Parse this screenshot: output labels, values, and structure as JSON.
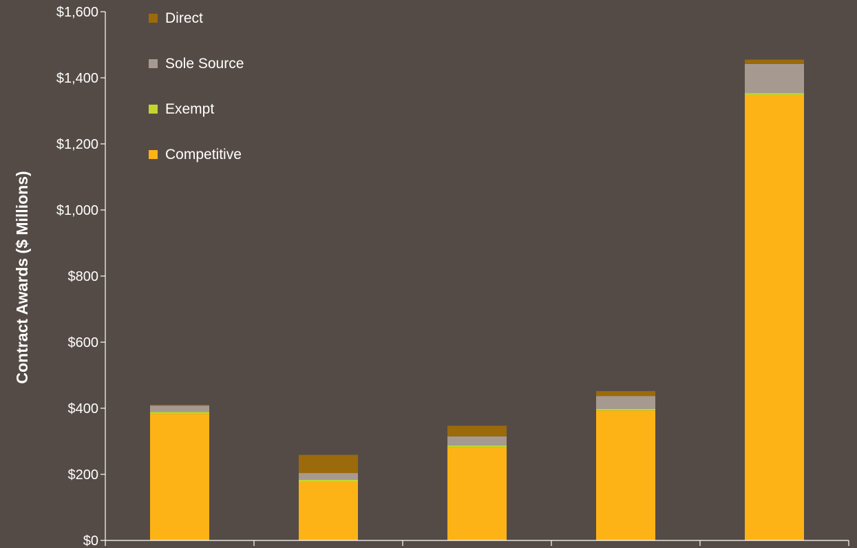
{
  "chart_data": {
    "type": "bar",
    "stacked": true,
    "ylabel": "Contract Awards ($ Millions)",
    "ylim": [
      0,
      1600
    ],
    "yticks": [
      0,
      200,
      400,
      600,
      800,
      1000,
      1200,
      1400,
      1600
    ],
    "ytick_labels": [
      "$0",
      "$200",
      "$400",
      "$600",
      "$800",
      "$1,000",
      "$1,200",
      "$1,400",
      "$1,600"
    ],
    "categories": [
      "",
      "",
      "",
      "",
      ""
    ],
    "legend_position": "top-left",
    "grid": false,
    "series": [
      {
        "name": "Competitive",
        "color": "#fdb316",
        "values": [
          383,
          177,
          282,
          393,
          1348
        ]
      },
      {
        "name": "Exempt",
        "color": "#c2d62d",
        "values": [
          6,
          7,
          6,
          5,
          6
        ]
      },
      {
        "name": "Sole Source",
        "color": "#a69a90",
        "values": [
          19,
          20,
          27,
          39,
          88
        ]
      },
      {
        "name": "Direct",
        "color": "#9b6a0a",
        "values": [
          2,
          55,
          32,
          15,
          13
        ]
      }
    ],
    "legend_order": [
      "Direct",
      "Sole Source",
      "Exempt",
      "Competitive"
    ]
  },
  "colors": {
    "background": "#554b46",
    "axis": "#ffffff",
    "text": "#ffffff"
  }
}
